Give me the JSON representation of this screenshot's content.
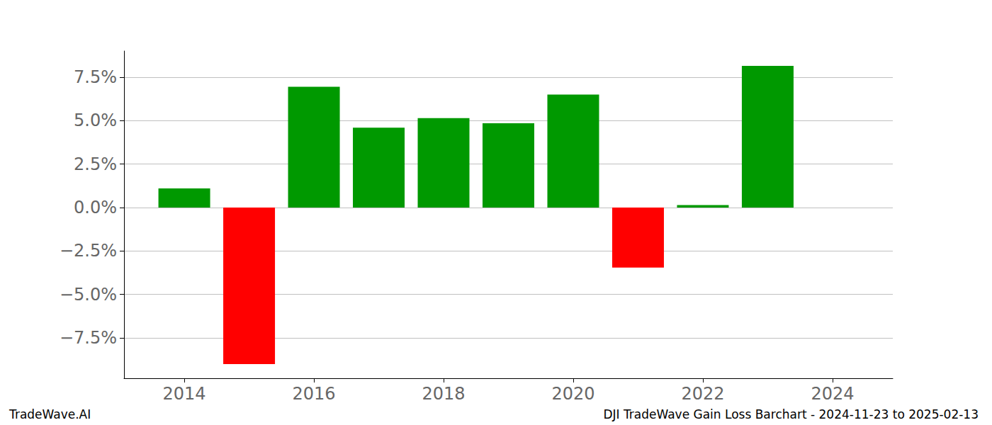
{
  "chart_data": {
    "type": "bar",
    "title": "DJI TradeWave Gain Loss Barchart - 2024-11-23 to 2025-02-13",
    "annotations": [
      "TradeWave.AI"
    ],
    "x": [
      2014,
      2015,
      2016,
      2017,
      2018,
      2019,
      2020,
      2021,
      2022,
      2023
    ],
    "values": [
      1.1,
      -9.0,
      6.95,
      4.6,
      5.15,
      4.85,
      6.5,
      -3.45,
      0.15,
      8.15
    ],
    "colors": [
      "#009900",
      "#ff0000",
      "#009900",
      "#009900",
      "#009900",
      "#009900",
      "#009900",
      "#ff0000",
      "#009900",
      "#009900"
    ],
    "xlim": [
      2013.07,
      2024.93
    ],
    "xticks": [
      2014,
      2016,
      2018,
      2020,
      2022,
      2024
    ],
    "ylim": [
      -9.82,
      9.01
    ],
    "yticks": [
      {
        "value": -7.5,
        "label": "−7.5%"
      },
      {
        "value": -5,
        "label": "−5.0%"
      },
      {
        "value": -2.5,
        "label": "−2.5%"
      },
      {
        "value": 0,
        "label": "0.0%"
      },
      {
        "value": 2.5,
        "label": "2.5%"
      },
      {
        "value": 5,
        "label": "5.0%"
      },
      {
        "value": 7.5,
        "label": "7.5%"
      }
    ],
    "grid": true
  }
}
